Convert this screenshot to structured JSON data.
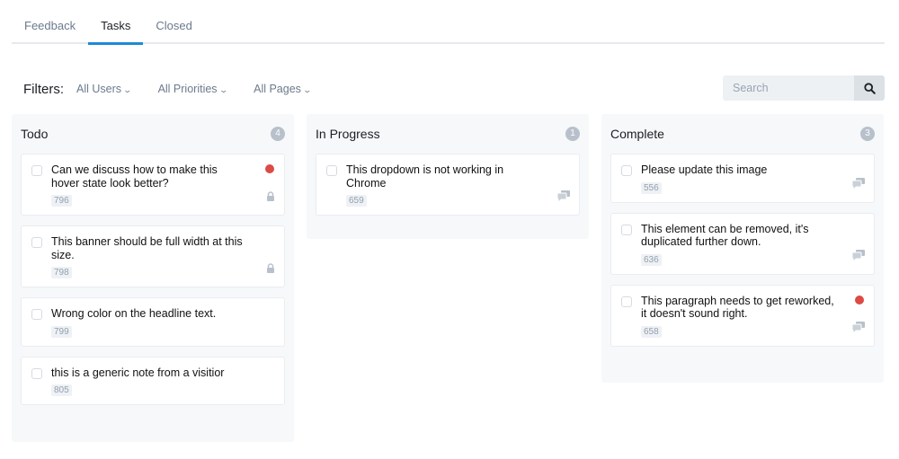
{
  "tabs": [
    {
      "label": "Feedback",
      "active": false
    },
    {
      "label": "Tasks",
      "active": true
    },
    {
      "label": "Closed",
      "active": false
    }
  ],
  "filters": {
    "label": "Filters:",
    "users": "All Users",
    "priorities": "All Priorities",
    "pages": "All Pages"
  },
  "search": {
    "placeholder": "Search",
    "value": ""
  },
  "colors": {
    "accent": "#1d8ad6",
    "priority_high": "#dc4a44"
  },
  "columns": [
    {
      "title": "Todo",
      "count": "4",
      "cards": [
        {
          "title": "Can we discuss how to make this hover state look better?",
          "id": "796",
          "priority": true,
          "icon": "lock-icon"
        },
        {
          "title": "This banner should be full width at this size.",
          "id": "798",
          "priority": false,
          "icon": "lock-icon"
        },
        {
          "title": "Wrong color on the headline text.",
          "id": "799",
          "priority": false,
          "icon": ""
        },
        {
          "title": "this is a generic note from a visitior",
          "id": "805",
          "priority": false,
          "icon": ""
        }
      ]
    },
    {
      "title": "In Progress",
      "count": "1",
      "cards": [
        {
          "title": "This dropdown is not working in Chrome",
          "id": "659",
          "priority": false,
          "icon": "comments-icon"
        }
      ]
    },
    {
      "title": "Complete",
      "count": "3",
      "cards": [
        {
          "title": "Please update this image",
          "id": "556",
          "priority": false,
          "icon": "comments-icon"
        },
        {
          "title": "This element can be removed, it's duplicated further down.",
          "id": "636",
          "priority": false,
          "icon": "comments-icon"
        },
        {
          "title": "This paragraph needs to get reworked, it doesn't sound right.",
          "id": "658",
          "priority": true,
          "icon": "comments-icon"
        }
      ]
    }
  ]
}
